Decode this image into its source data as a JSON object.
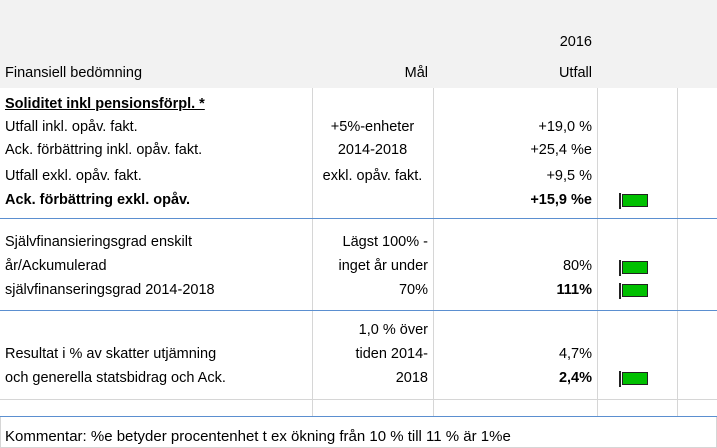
{
  "header": {
    "year": "2016",
    "label": "Finansiell bedömning",
    "target": "Mål",
    "outcome": "Utfall"
  },
  "rows": [
    {
      "label": "Soliditet inkl pensionsförpl. *"
    },
    {
      "label": "Utfall inkl. opåv. fakt.",
      "target": "+5%-enheter",
      "outcome": "+19,0 %"
    },
    {
      "label": "Ack. förbättring inkl. opåv. fakt.",
      "target": "2014-2018",
      "outcome": "+25,4 %e"
    },
    {
      "label": "Utfall exkl. opåv. fakt.",
      "target": "exkl. opåv. fakt.",
      "outcome": "+9,5 %"
    },
    {
      "label": "Ack. förbättring exkl. opåv.",
      "outcome": "+15,9 %e"
    },
    {
      "label": "Självfinansieringsgrad enskilt",
      "target": "Lägst 100% -"
    },
    {
      "label": "år/Ackumulerad",
      "target": "inget år under",
      "outcome": "80%"
    },
    {
      "label": "självfinanseringsgrad 2014-2018",
      "target": "70%",
      "outcome": "111%"
    },
    {
      "target": "1,0 % över"
    },
    {
      "label": "Resultat i % av skatter utjämning",
      "target": "tiden 2014-",
      "outcome": "4,7%"
    },
    {
      "label": "och generella statsbidrag och Ack.",
      "target": "2018",
      "outcome": "2,4%"
    }
  ],
  "comment": "Kommentar: %e betyder procentenhet t ex ökning från 10 % till 11 % är 1%e"
}
